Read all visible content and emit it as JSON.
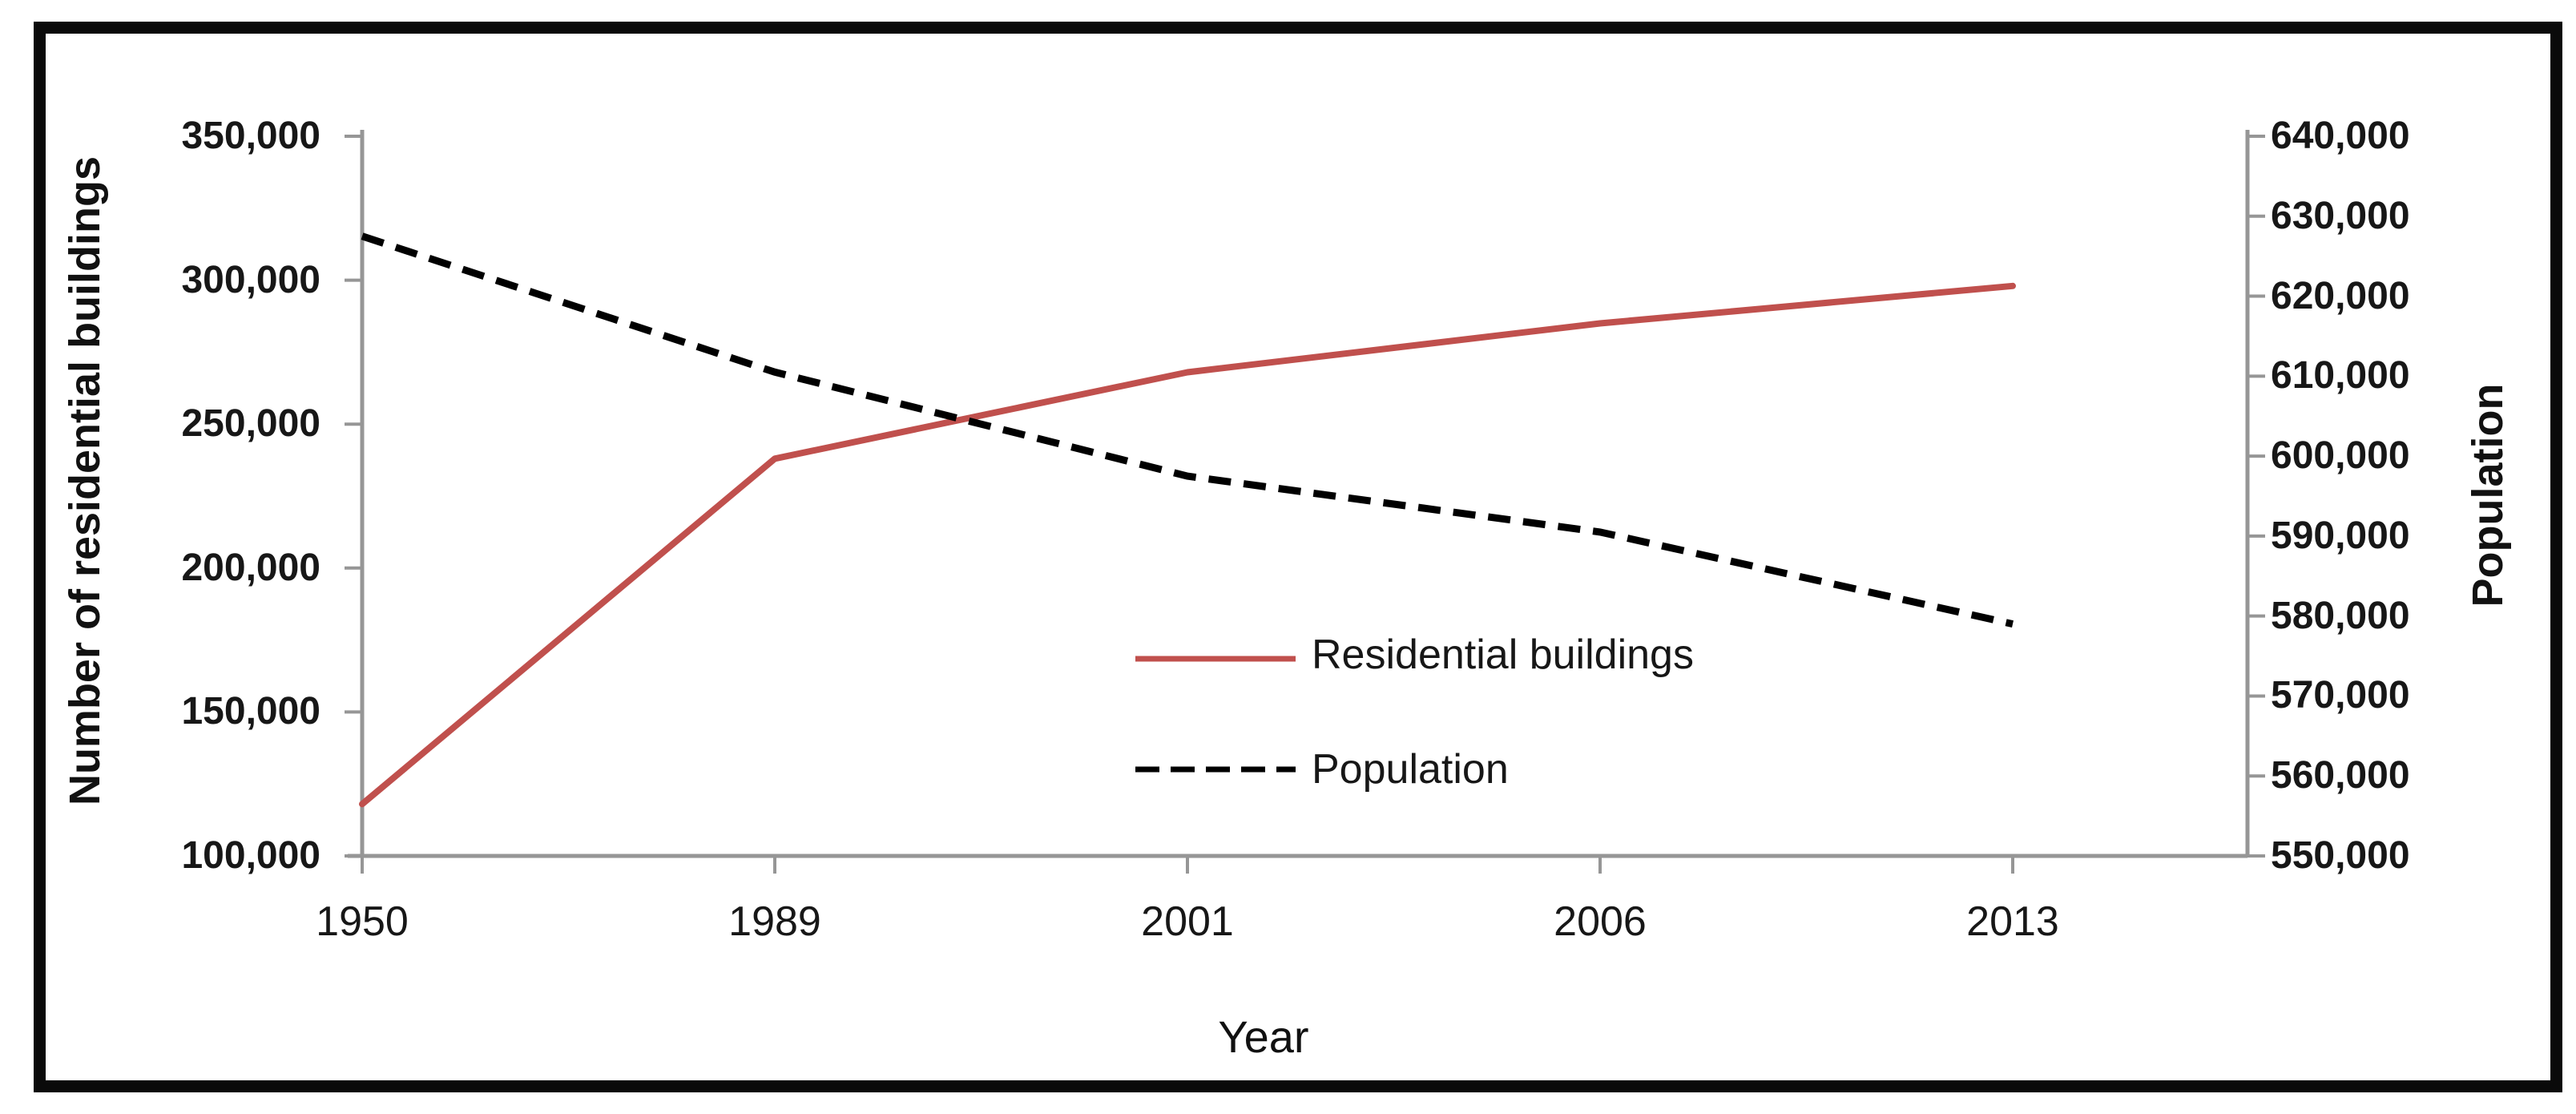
{
  "chart_data": {
    "type": "line",
    "title": "",
    "x_axis": {
      "title": "Year",
      "tick_labels": [
        "1950",
        "1989",
        "2001",
        "2006",
        "2013"
      ],
      "categories": [
        1950,
        1989,
        2001,
        2006,
        2013
      ]
    },
    "left_axis": {
      "title": "Number of residential buildings",
      "min": 100000,
      "max": 350000,
      "tick_step": 50000,
      "tick_labels": [
        "350,000",
        "300,000",
        "250,000",
        "200,000",
        "150,000",
        "100,000"
      ]
    },
    "right_axis": {
      "title": "Population",
      "min": 550000,
      "max": 640000,
      "tick_step": 10000,
      "tick_labels": [
        "640,000",
        "630,000",
        "620,000",
        "610,000",
        "600,000",
        "590,000",
        "580,000",
        "570,000",
        "560,000",
        "550,000"
      ]
    },
    "series": [
      {
        "name": "Residential buildings",
        "axis": "left",
        "color": "#c0504d",
        "line_style": "solid",
        "values": [
          118000,
          238000,
          268000,
          285000,
          298000
        ]
      },
      {
        "name": "Population",
        "axis": "right",
        "color": "#000000",
        "line_style": "dashed",
        "values": [
          627500,
          610500,
          597500,
          590500,
          579000
        ]
      }
    ],
    "legend": {
      "position": "center-inside",
      "entries": [
        "Residential buildings",
        "Population"
      ]
    },
    "colors": {
      "axis_line": "#969696",
      "frame_border": "#0a0a0a",
      "text": "#171717"
    },
    "grid": "off"
  }
}
